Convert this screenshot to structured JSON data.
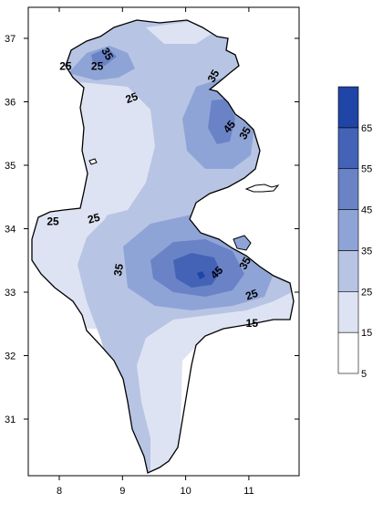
{
  "map": {
    "type": "filled-contour",
    "region": "Tunisia",
    "x_axis": {
      "range": [
        7.5,
        11.9
      ],
      "ticks": [
        {
          "value": 8,
          "label": "8"
        },
        {
          "value": 9,
          "label": "9"
        },
        {
          "value": 10,
          "label": "10"
        },
        {
          "value": 11,
          "label": "11"
        }
      ]
    },
    "y_axis": {
      "range": [
        30.1,
        37.5
      ],
      "ticks": [
        {
          "value": 37,
          "label": "37"
        },
        {
          "value": 36,
          "label": "36"
        },
        {
          "value": 35,
          "label": "35"
        },
        {
          "value": 34,
          "label": "34"
        },
        {
          "value": 33,
          "label": "33"
        },
        {
          "value": 32,
          "label": "32"
        },
        {
          "value": 31,
          "label": "31"
        }
      ]
    },
    "contour_labels": [
      {
        "text": "35",
        "lon": 8.75,
        "lat": 36.75,
        "rotate": 60
      },
      {
        "text": "25",
        "lon": 8.1,
        "lat": 36.55,
        "rotate": 0
      },
      {
        "text": "25",
        "lon": 8.6,
        "lat": 36.55,
        "rotate": 0
      },
      {
        "text": "25",
        "lon": 9.15,
        "lat": 36.05,
        "rotate": -20
      },
      {
        "text": "35",
        "lon": 10.45,
        "lat": 36.4,
        "rotate": -60
      },
      {
        "text": "45",
        "lon": 10.7,
        "lat": 35.6,
        "rotate": -50
      },
      {
        "text": "35",
        "lon": 10.95,
        "lat": 35.5,
        "rotate": -60
      },
      {
        "text": "25",
        "lon": 7.9,
        "lat": 34.1,
        "rotate": 0
      },
      {
        "text": "25",
        "lon": 8.55,
        "lat": 34.15,
        "rotate": -15
      },
      {
        "text": "35",
        "lon": 8.95,
        "lat": 33.35,
        "rotate": -80
      },
      {
        "text": "45",
        "lon": 10.5,
        "lat": 33.3,
        "rotate": -45
      },
      {
        "text": "35",
        "lon": 10.95,
        "lat": 33.45,
        "rotate": -60
      },
      {
        "text": "25",
        "lon": 11.05,
        "lat": 32.95,
        "rotate": -20
      },
      {
        "text": "15",
        "lon": 11.05,
        "lat": 32.5,
        "rotate": 0
      }
    ],
    "legend": {
      "levels": [
        5,
        15,
        25,
        35,
        45,
        55,
        65
      ],
      "labels": [
        "5",
        "15",
        "25",
        "35",
        "45",
        "55",
        "65"
      ],
      "colors": [
        "#ffffff",
        "#dde3f2",
        "#b7c4e4",
        "#8fa4d6",
        "#6a83c6",
        "#4463b7",
        "#1f45a6"
      ]
    }
  }
}
